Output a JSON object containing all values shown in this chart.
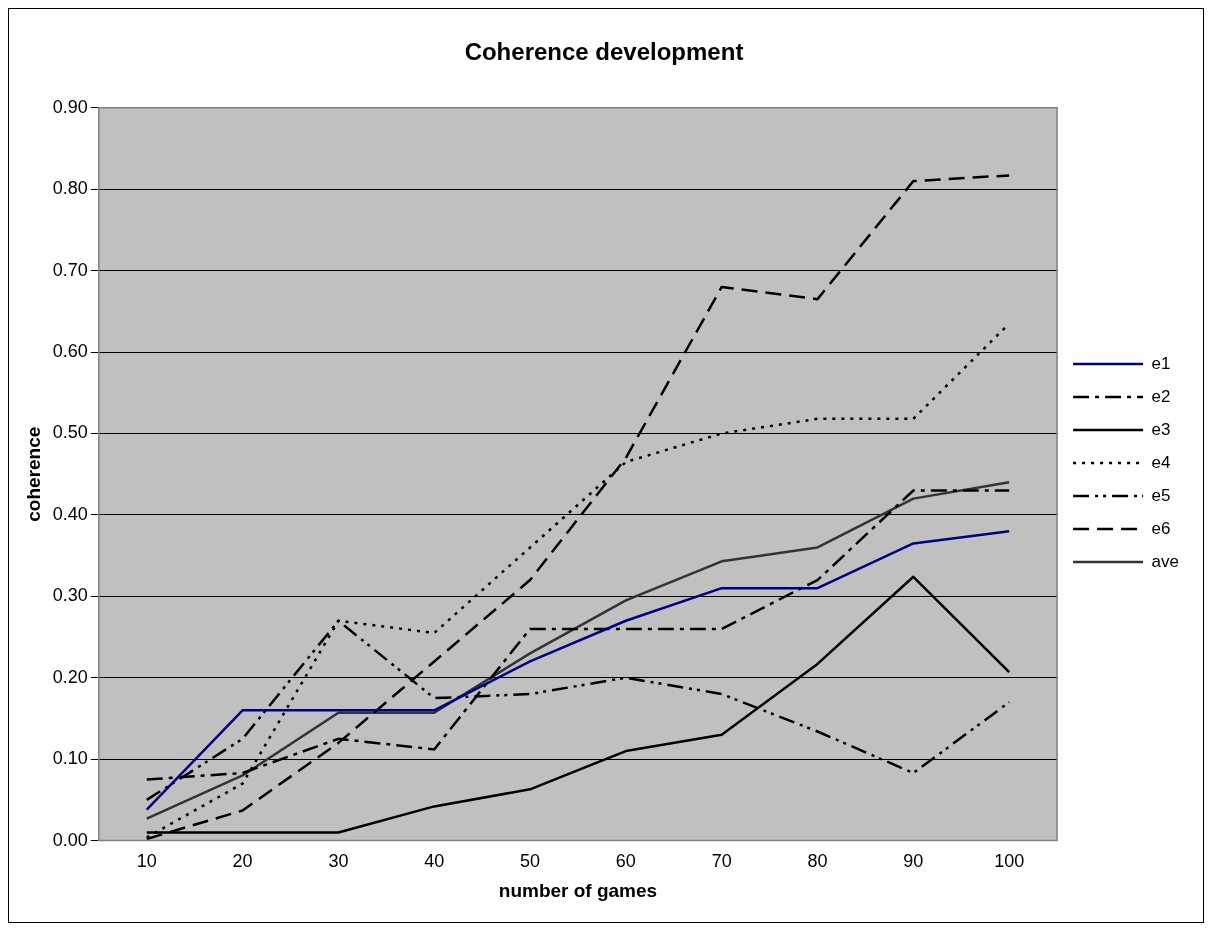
{
  "chart_data": {
    "type": "line",
    "title": "Coherence development",
    "xlabel": "number of games",
    "ylabel": "coherence",
    "categories": [
      "10",
      "20",
      "30",
      "40",
      "50",
      "60",
      "70",
      "80",
      "90",
      "100"
    ],
    "series": [
      {
        "name": "e1",
        "color": "#000080",
        "line_style": "solid",
        "values": [
          0.038,
          0.16,
          0.16,
          0.16,
          0.22,
          0.27,
          0.31,
          0.31,
          0.365,
          0.38
        ]
      },
      {
        "name": "e2",
        "color": "#000000",
        "line_style": "dashdot",
        "values": [
          0.075,
          0.083,
          0.125,
          0.112,
          0.26,
          0.26,
          0.26,
          0.32,
          0.43,
          0.43
        ]
      },
      {
        "name": "e3",
        "color": "#000000",
        "line_style": "solid",
        "values": [
          0.01,
          0.01,
          0.01,
          0.042,
          0.063,
          0.11,
          0.13,
          0.217,
          0.324,
          0.207
        ]
      },
      {
        "name": "e4",
        "color": "#000000",
        "line_style": "dotted",
        "values": [
          0.004,
          0.07,
          0.27,
          0.255,
          0.36,
          0.465,
          0.5,
          0.518,
          0.518,
          0.635
        ]
      },
      {
        "name": "e5",
        "color": "#000000",
        "line_style": "dashdotdot",
        "values": [
          0.05,
          0.125,
          0.27,
          0.175,
          0.18,
          0.2,
          0.18,
          0.134,
          0.083,
          0.17
        ]
      },
      {
        "name": "e6",
        "color": "#000000",
        "line_style": "dashed",
        "values": [
          0.002,
          0.037,
          0.12,
          0.22,
          0.32,
          0.47,
          0.68,
          0.665,
          0.81,
          0.817
        ]
      },
      {
        "name": "ave",
        "color": "#333333",
        "line_style": "solid",
        "values": [
          0.027,
          0.08,
          0.157,
          0.157,
          0.23,
          0.295,
          0.343,
          0.36,
          0.42,
          0.44
        ]
      }
    ],
    "ylim": [
      0,
      0.9
    ],
    "yticks": [
      {
        "value": 0,
        "label": "0.00"
      },
      {
        "value": 0.1,
        "label": "0.10"
      },
      {
        "value": 0.2,
        "label": "0.20"
      },
      {
        "value": 0.3,
        "label": "0.30"
      },
      {
        "value": 0.4,
        "label": "0.40"
      },
      {
        "value": 0.5,
        "label": "0.50"
      },
      {
        "value": 0.6,
        "label": "0.60"
      },
      {
        "value": 0.7,
        "label": "0.70"
      },
      {
        "value": 0.8,
        "label": "0.80"
      },
      {
        "value": 0.9,
        "label": "0.90"
      }
    ],
    "grid": "y",
    "legend": "right",
    "marker": "none"
  }
}
